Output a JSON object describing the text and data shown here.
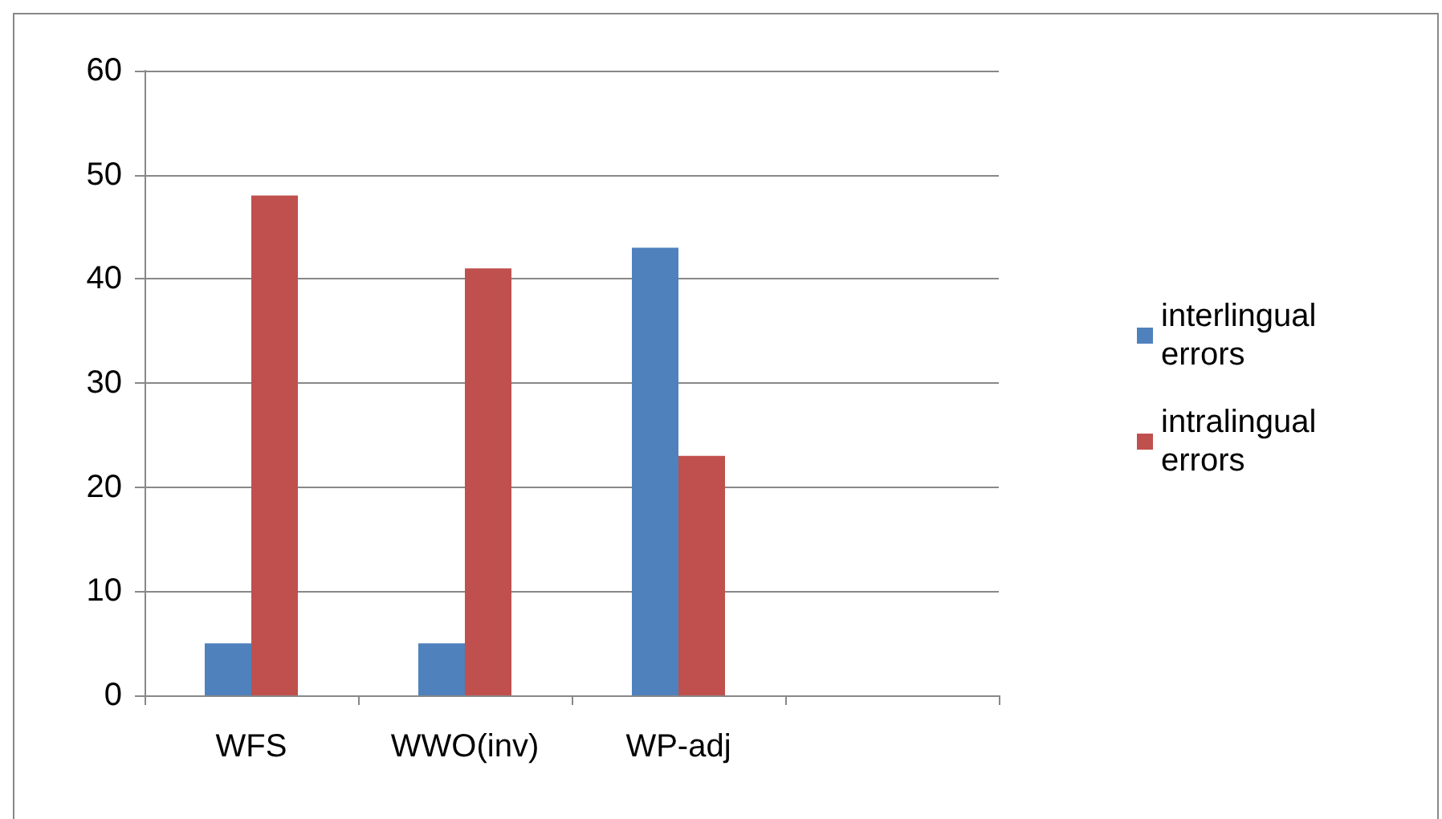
{
  "chart_data": {
    "type": "bar",
    "categories": [
      "WFS",
      "WWO(inv)",
      "WP-adj",
      null
    ],
    "series": [
      {
        "name": "interlingual errors",
        "color": "#4f81bd",
        "values": [
          5,
          5,
          43,
          null
        ]
      },
      {
        "name": "intralingual errors",
        "color": "#c0504d",
        "values": [
          48,
          41,
          23,
          null
        ]
      }
    ],
    "ylim": [
      0,
      60
    ],
    "yticks": [
      0,
      10,
      20,
      30,
      40,
      50,
      60
    ],
    "grid": "y",
    "legend": "right"
  }
}
